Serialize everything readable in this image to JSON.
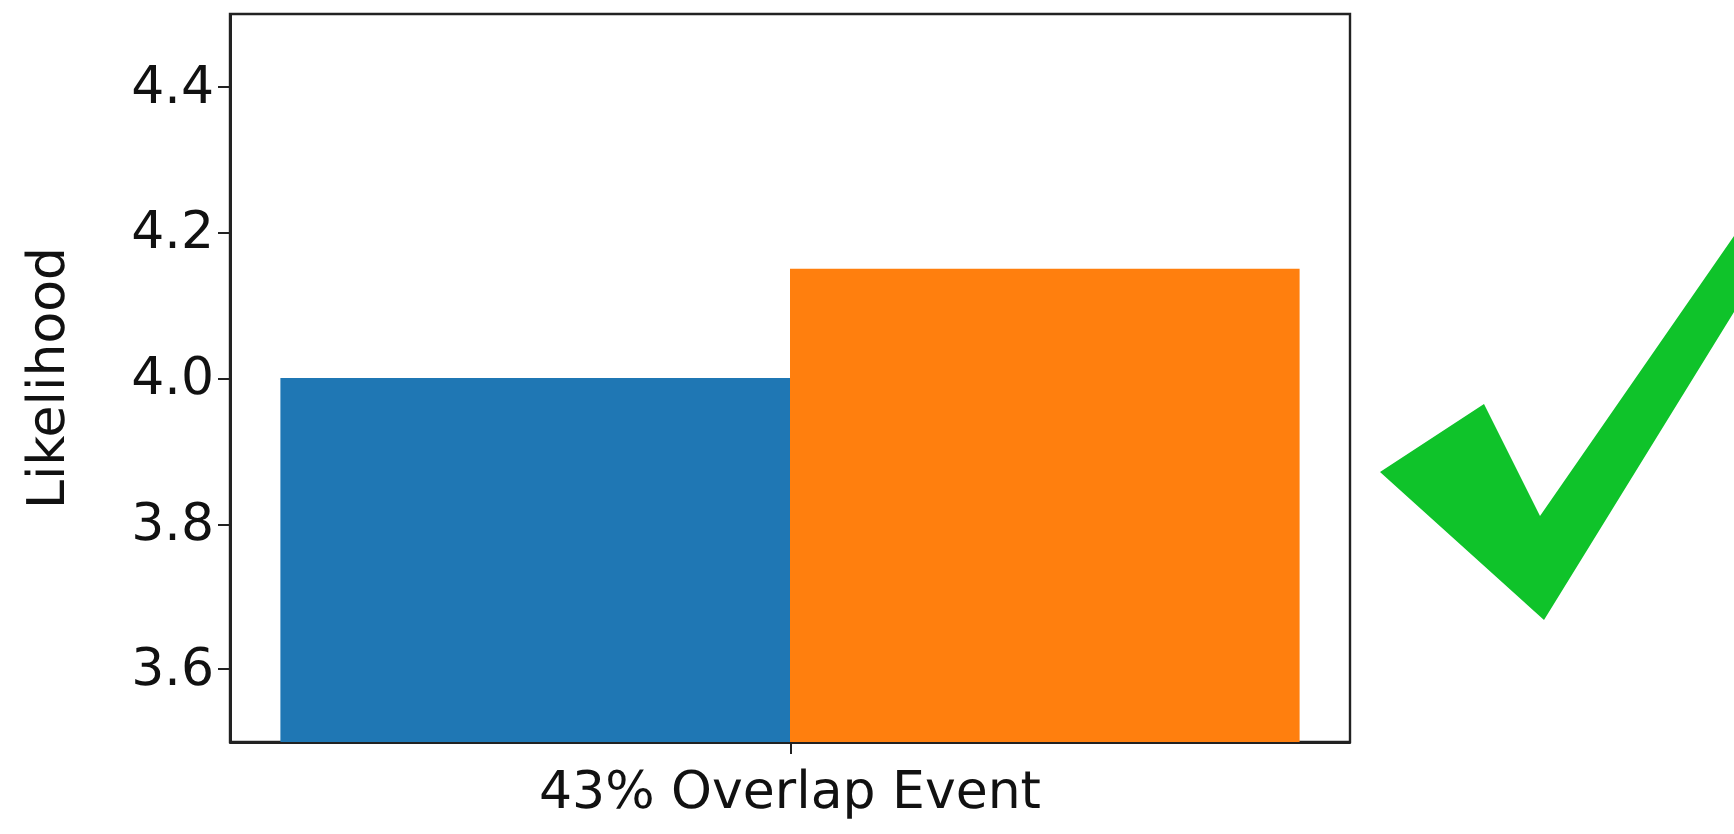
{
  "chart_data": {
    "type": "bar",
    "ylabel": "Likelihood",
    "categories": [
      "43% Overlap Event"
    ],
    "series": [
      {
        "color": "#1f77b4",
        "values": [
          4.0
        ]
      },
      {
        "color": "#ff7f0e",
        "values": [
          4.15
        ]
      }
    ],
    "ylim": [
      3.5,
      4.5
    ],
    "yticks": [
      3.6,
      3.8,
      {
        "value": 4,
        "label": "4.0"
      },
      4.2,
      4.4
    ],
    "grid": false
  }
}
